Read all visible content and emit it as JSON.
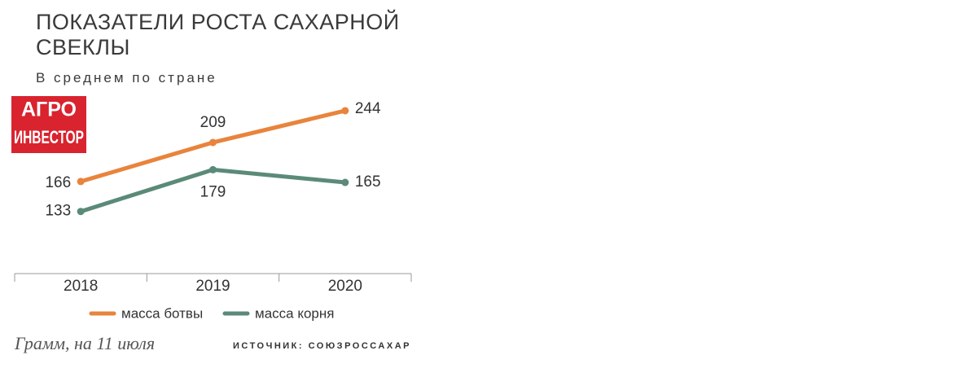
{
  "chart_data": {
    "type": "line",
    "title": "ПОКАЗАТЕЛИ РОСТА САХАРНОЙ СВЕКЛЫ",
    "subtitle": "В среднем по стране",
    "logo": [
      "АГРО",
      "ИНВЕСТОР"
    ],
    "categories": [
      "2018",
      "2019",
      "2020"
    ],
    "series": [
      {
        "name": "масса ботвы",
        "color": "#e8843c",
        "values": [
          166,
          209,
          244
        ]
      },
      {
        "name": "масса корня",
        "color": "#5b8a78",
        "values": [
          133,
          179,
          165
        ]
      }
    ],
    "note": "Грамм, на 11 июля",
    "source": "ИСТОЧНИК: СОЮЗРОССАХАР"
  }
}
